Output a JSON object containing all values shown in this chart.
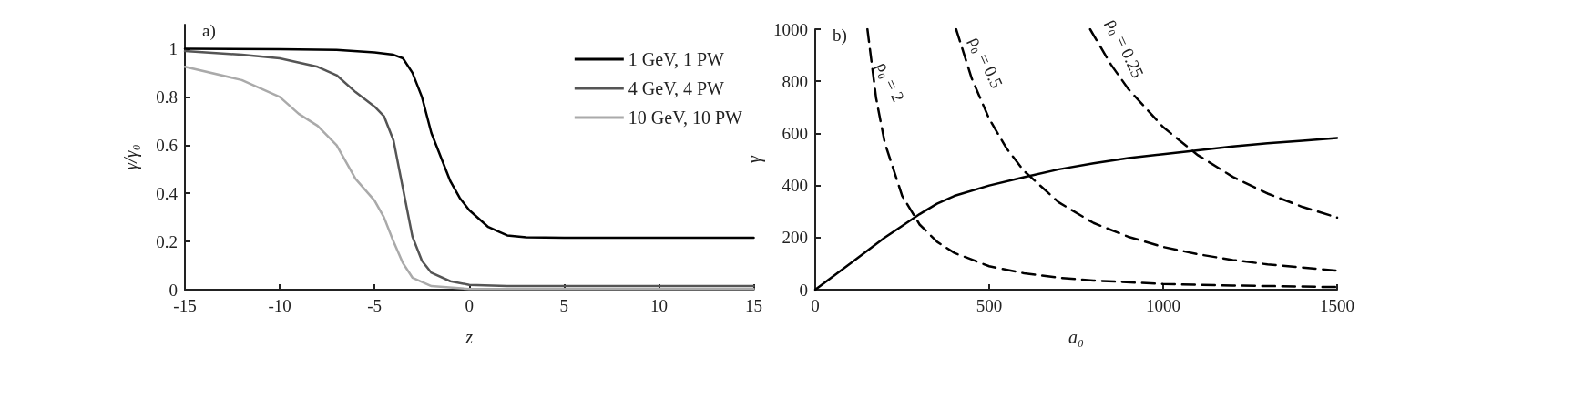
{
  "chart_data": [
    {
      "type": "line",
      "title": "a)",
      "xlabel": "z",
      "ylabel": "γ/γ₀",
      "xlim": [
        -15,
        15
      ],
      "xticks": [
        -15,
        -10,
        -5,
        0,
        5,
        10,
        15
      ],
      "ylim": [
        0,
        1.1
      ],
      "yticks": [
        0,
        0.2,
        0.4,
        0.6,
        0.8,
        1
      ],
      "grid": false,
      "legend": "top right",
      "marker": "none",
      "series": [
        {
          "name": "1 GeV, 1 PW",
          "color": "#000000",
          "x": [
            -15,
            -10,
            -7,
            -5,
            -4,
            -3.5,
            -3,
            -2.5,
            -2,
            -1.5,
            -1,
            -0.5,
            0,
            1,
            2,
            3,
            5,
            15
          ],
          "values": [
            1,
            0.998,
            0.995,
            0.985,
            0.975,
            0.96,
            0.9,
            0.8,
            0.65,
            0.55,
            0.45,
            0.38,
            0.33,
            0.26,
            0.225,
            0.217,
            0.215,
            0.215
          ]
        },
        {
          "name": "4 GeV, 4 PW",
          "color": "#555555",
          "x": [
            -15,
            -12,
            -10,
            -8,
            -7,
            -6,
            -5,
            -4.5,
            -4,
            -3.5,
            -3,
            -2.5,
            -2,
            -1,
            0,
            2,
            15
          ],
          "values": [
            0.99,
            0.975,
            0.96,
            0.925,
            0.89,
            0.82,
            0.76,
            0.72,
            0.62,
            0.42,
            0.22,
            0.12,
            0.07,
            0.035,
            0.02,
            0.015,
            0.015
          ]
        },
        {
          "name": "10 GeV, 10 PW",
          "color": "#aaaaaa",
          "x": [
            -15,
            -12,
            -10,
            -9,
            -8,
            -7,
            -6,
            -5,
            -4.5,
            -4,
            -3.5,
            -3,
            -2,
            0,
            15
          ],
          "values": [
            0.925,
            0.87,
            0.8,
            0.73,
            0.68,
            0.6,
            0.46,
            0.37,
            0.3,
            0.2,
            0.11,
            0.05,
            0.015,
            0.003,
            0.003
          ]
        }
      ]
    },
    {
      "type": "line",
      "title": "b)",
      "xlabel": "a₀",
      "ylabel": "γ",
      "xlim": [
        0,
        1500
      ],
      "xticks": [
        0,
        500,
        1000,
        1500
      ],
      "ylim": [
        0,
        1000
      ],
      "yticks": [
        0,
        200,
        400,
        600,
        800,
        1000
      ],
      "grid": false,
      "legend": false,
      "marker": "none",
      "series": [
        {
          "color": "#000000",
          "line_style": "solid",
          "x": [
            0,
            100,
            200,
            250,
            300,
            350,
            400,
            500,
            600,
            700,
            800,
            900,
            1000,
            1100,
            1200,
            1300,
            1400,
            1500
          ],
          "values": [
            0,
            100,
            200,
            245,
            290,
            330,
            360,
            400,
            432,
            462,
            485,
            505,
            520,
            535,
            550,
            562,
            572,
            582
          ]
        },
        {
          "name": "ρ₀ = 2",
          "color": "#000000",
          "line_style": "dashed",
          "x": [
            150,
            175,
            200,
            250,
            300,
            350,
            400,
            500,
            600,
            700,
            800,
            1000,
            1200,
            1500
          ],
          "values": [
            1000,
            735,
            563,
            360,
            250,
            184,
            141,
            90,
            63,
            46,
            35,
            22,
            16,
            10
          ]
        },
        {
          "name": "ρ₀ = 0.5",
          "color": "#000000",
          "line_style": "dashed",
          "x": [
            405,
            450,
            500,
            550,
            600,
            700,
            800,
            900,
            1000,
            1100,
            1200,
            1300,
            1500
          ],
          "values": [
            1000,
            810,
            656,
            542,
            456,
            335,
            256,
            203,
            164,
            136,
            114,
            97,
            73
          ]
        },
        {
          "name": "ρ₀ = 0.25",
          "color": "#000000",
          "line_style": "dashed",
          "x": [
            790,
            850,
            900,
            1000,
            1100,
            1200,
            1300,
            1400,
            1500
          ],
          "values": [
            1000,
            864,
            770,
            624,
            516,
            433,
            369,
            318,
            277
          ]
        }
      ]
    }
  ]
}
